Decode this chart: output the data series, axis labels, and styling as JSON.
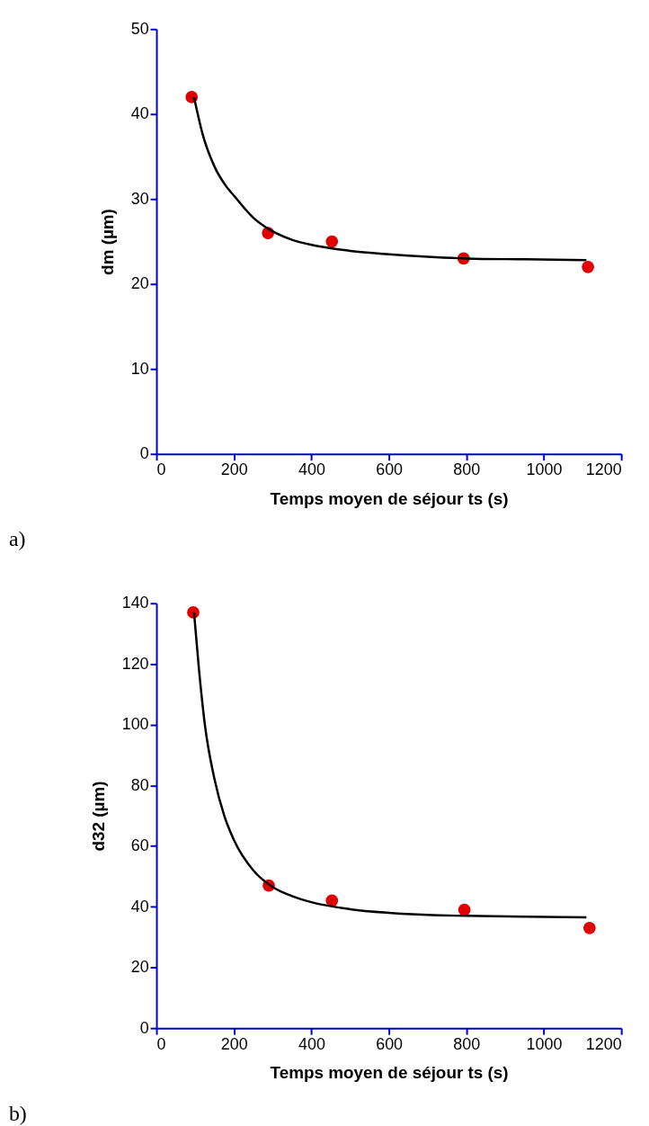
{
  "chart_data": [
    {
      "type": "scatter",
      "xlabel": "Temps moyen de séjour ts (s)",
      "ylabel": "dm (µm)",
      "annotations": [
        "a)"
      ],
      "xlim": [
        0,
        1200
      ],
      "xticks": [
        0,
        200,
        400,
        600,
        800,
        1000,
        1200
      ],
      "ylim": [
        0,
        50
      ],
      "yticks": [
        0,
        10,
        20,
        30,
        40,
        50
      ],
      "grid": false,
      "marker": "circle",
      "series": [
        {
          "color": "#e00000",
          "x": [
            91,
            288,
            453,
            793,
            1114
          ],
          "values": [
            42,
            26,
            25,
            23,
            22
          ]
        },
        {
          "type": "line",
          "marker": "none",
          "color": "#000000",
          "x": [
            97,
            120,
            150,
            180,
            200,
            250,
            300,
            350,
            400,
            500,
            600,
            700,
            800,
            950,
            1110
          ],
          "values": [
            42,
            37.5,
            33.8,
            31.5,
            30.4,
            27.8,
            26.2,
            25.2,
            24.6,
            23.9,
            23.5,
            23.2,
            23.0,
            22.9,
            22.8
          ]
        }
      ]
    },
    {
      "type": "scatter",
      "xlabel": "Temps moyen de séjour ts (s)",
      "ylabel": "d32 (µm)",
      "annotations": [
        "b)"
      ],
      "xlim": [
        0,
        1200
      ],
      "xticks": [
        0,
        200,
        400,
        600,
        800,
        1000,
        1200
      ],
      "ylim": [
        0,
        140
      ],
      "yticks": [
        0,
        20,
        40,
        60,
        80,
        100,
        120,
        140
      ],
      "grid": false,
      "marker": "circle",
      "series": [
        {
          "color": "#e00000",
          "x": [
            95,
            290,
            453,
            795,
            1118
          ],
          "values": [
            137,
            47,
            42,
            39,
            33
          ]
        },
        {
          "type": "line",
          "marker": "none",
          "color": "#000000",
          "x": [
            97,
            110,
            125,
            150,
            175,
            200,
            250,
            300,
            350,
            400,
            500,
            600,
            700,
            800,
            950,
            1110
          ],
          "values": [
            137,
            118,
            100,
            82,
            70,
            62,
            52,
            46.5,
            43.5,
            41.5,
            39.2,
            38.0,
            37.3,
            37.0,
            36.7,
            36.5
          ]
        }
      ]
    }
  ]
}
